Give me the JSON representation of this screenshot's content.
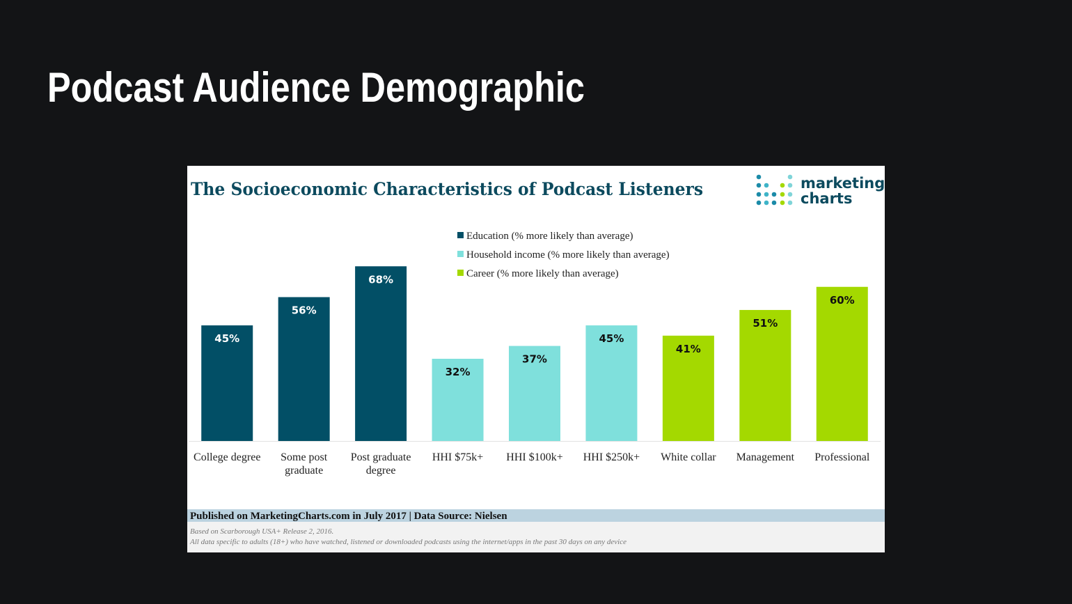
{
  "page_title": "Podcast Audience Demographic",
  "logo": {
    "line1": "marketing",
    "line2": "charts"
  },
  "chart_data": {
    "type": "bar",
    "title": "The Socioeconomic Characteristics of Podcast Listeners",
    "categories": [
      "College degree",
      "Some post graduate",
      "Post graduate degree",
      "HHI $75k+",
      "HHI $100k+",
      "HHI $250k+",
      "White collar",
      "Management",
      "Professional"
    ],
    "series": [
      {
        "name": "Education (% more likely than average)",
        "color": "#024f66",
        "values": [
          45,
          56,
          68,
          null,
          null,
          null,
          null,
          null,
          null
        ],
        "value_labels": [
          "45%",
          "56%",
          "68%",
          null,
          null,
          null,
          null,
          null,
          null
        ]
      },
      {
        "name": "Household income (% more likely than average)",
        "color": "#7fe0dc",
        "values": [
          null,
          null,
          null,
          32,
          37,
          45,
          null,
          null,
          null
        ],
        "value_labels": [
          null,
          null,
          null,
          "32%",
          "37%",
          "45%",
          null,
          null,
          null
        ]
      },
      {
        "name": "Career (% more likely than average)",
        "color": "#a4d900",
        "values": [
          null,
          null,
          null,
          null,
          null,
          null,
          41,
          51,
          60
        ],
        "value_labels": [
          null,
          null,
          null,
          null,
          null,
          null,
          "41%",
          "51%",
          "60%"
        ]
      }
    ],
    "ylim": [
      0,
      80
    ]
  },
  "footer": {
    "source": "Published on MarketingCharts.com in July 2017 | Data Source: Nielsen",
    "notes": [
      "Based on Scarborough USA+ Release 2, 2016.",
      "All data specific to adults (18+) who have watched, listened or downloaded podcasts using the internet/apps in the past 30 days on any device"
    ]
  }
}
